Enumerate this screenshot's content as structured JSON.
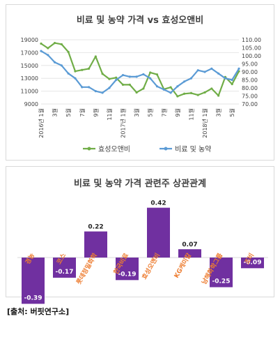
{
  "chart_data": [
    {
      "type": "line",
      "title": "비료 및 농약 가격 vs 효성오앤비",
      "x_tick_labels": [
        "2016년 1월",
        "3월",
        "5월",
        "7월",
        "9월",
        "11월",
        "2017년 1월",
        "3월",
        "5월",
        "7월",
        "9월",
        "11월",
        "2018년 1월",
        "3월",
        "5월"
      ],
      "y_left_ticks": [
        "19000",
        "17000",
        "15000",
        "13000",
        "11000",
        "9000"
      ],
      "y_right_ticks": [
        "110.00",
        "105.00",
        "100.00",
        "95.00",
        "90.00",
        "85.00",
        "80.00",
        "75.00",
        "70.00"
      ],
      "y_left_range": [
        9000,
        19000
      ],
      "y_right_range": [
        70,
        110
      ],
      "legend_position": "bottom",
      "series": [
        {
          "name": "효성오앤비",
          "axis": "left",
          "color": "#70ad47",
          "values": [
            18400,
            17700,
            18500,
            18300,
            17100,
            14100,
            14300,
            14500,
            16400,
            13700,
            12900,
            13100,
            12000,
            12000,
            10800,
            11400,
            13900,
            13600,
            11300,
            11600,
            10200,
            10600,
            10700,
            10400,
            10800,
            11400,
            10300,
            13200,
            12100,
            14100
          ]
        },
        {
          "name": "비료 및 농약",
          "axis": "right",
          "color": "#5b9bd5",
          "values": [
            103.0,
            100.5,
            96.0,
            94.0,
            89.0,
            86.0,
            80.5,
            80.5,
            78.0,
            77.0,
            80.0,
            85.0,
            88.0,
            87.0,
            87.0,
            88.5,
            86.0,
            81.0,
            79.0,
            77.0,
            81.0,
            84.0,
            86.0,
            91.0,
            90.0,
            92.0,
            89.0,
            86.0,
            85.0,
            92.0
          ]
        }
      ]
    },
    {
      "type": "bar",
      "title": "비료 및 농약 가격 관련주 상관관계",
      "categories": [
        "경농",
        "코스",
        "롯데정밀화학",
        "한국비료",
        "효성오앤비",
        "KG케미칼",
        "남해화학그룹",
        "조비"
      ],
      "values": [
        -0.39,
        -0.17,
        0.22,
        -0.19,
        0.42,
        0.07,
        -0.25,
        -0.09
      ],
      "value_labels": [
        "-0.39",
        "-0.17",
        "0.22",
        "-0.19",
        "0.42",
        "0.07",
        "-0.25",
        "-0.09"
      ],
      "ylim": [
        -0.5,
        0.5
      ],
      "colors": {
        "bar": "#7030a0",
        "category_label": "#ed7d31",
        "value_label": "#ffffff"
      }
    }
  ],
  "source": "[출처: 버핏연구소]"
}
